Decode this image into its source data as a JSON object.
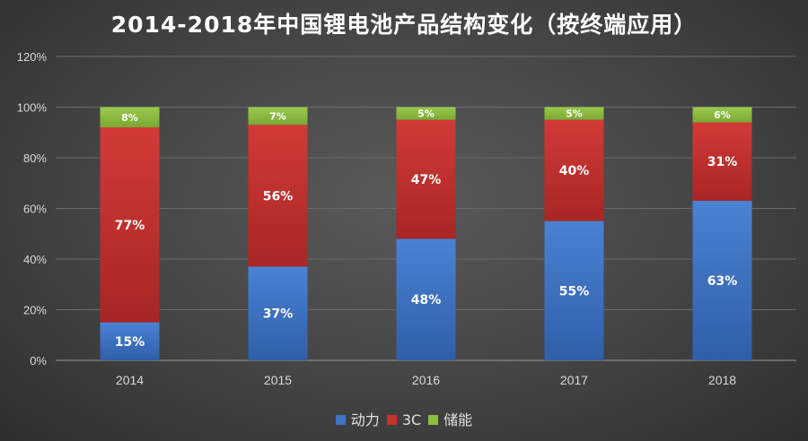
{
  "chart_data": {
    "type": "bar",
    "stacked": true,
    "title": "2014-2018年中国锂电池产品结构变化（按终端应用）",
    "categories": [
      "2014",
      "2015",
      "2016",
      "2017",
      "2018"
    ],
    "series": [
      {
        "name": "动力",
        "values": [
          15,
          37,
          48,
          55,
          63
        ],
        "labels": [
          "15%",
          "37%",
          "48%",
          "55%",
          "63%"
        ],
        "color": "#3d74c6"
      },
      {
        "name": "3C",
        "values": [
          77,
          56,
          47,
          40,
          31
        ],
        "labels": [
          "77%",
          "56%",
          "47%",
          "40%",
          "31%"
        ],
        "color": "#c8312f"
      },
      {
        "name": "储能",
        "values": [
          8,
          7,
          5,
          5,
          6
        ],
        "labels": [
          "8%",
          "7%",
          "5%",
          "5%",
          "6%"
        ],
        "color": "#8cbf3f"
      }
    ],
    "ylim": [
      0,
      120
    ],
    "yticks": [
      "0%",
      "20%",
      "40%",
      "60%",
      "80%",
      "100%",
      "120%"
    ],
    "grid": true,
    "legend_position": "bottom"
  }
}
